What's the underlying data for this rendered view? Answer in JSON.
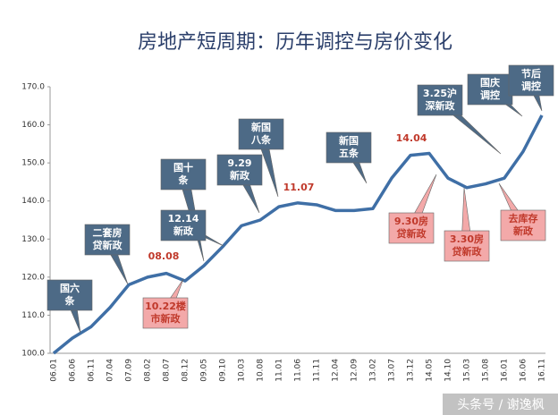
{
  "chart_data": {
    "type": "line",
    "title": "房地产短周期：历年调控与房价变化",
    "categories": [
      "06.01",
      "06.06",
      "06.11",
      "07.04",
      "07.09",
      "08.02",
      "08.07",
      "08.12",
      "09.05",
      "09.10",
      "10.03",
      "10.08",
      "11.01",
      "11.06",
      "11.11",
      "12.04",
      "12.09",
      "13.02",
      "13.07",
      "13.12",
      "14.05",
      "14.10",
      "15.03",
      "15.08",
      "16.01",
      "16.06",
      "16.11"
    ],
    "values": [
      100,
      104,
      107,
      112,
      118,
      120,
      121,
      119,
      123,
      128,
      133.5,
      135,
      138.5,
      139.5,
      139,
      137.5,
      137.5,
      138,
      146,
      152,
      152.5,
      146,
      143.5,
      144.5,
      146,
      153,
      162.5
    ],
    "color": "#3f6fa6",
    "ylim": [
      100,
      170
    ],
    "yticks": [
      {
        "value": 100,
        "label": "100.0"
      },
      {
        "value": 110,
        "label": "110.0"
      },
      {
        "value": 120,
        "label": "120.0"
      },
      {
        "value": 130,
        "label": "130.0"
      },
      {
        "value": 140,
        "label": "140.0"
      },
      {
        "value": 150,
        "label": "150.0"
      },
      {
        "value": 160,
        "label": "160.0"
      },
      {
        "value": 170,
        "label": "170.0"
      }
    ],
    "grid": false,
    "annotations": [
      {
        "lines": [
          "国六",
          "条"
        ],
        "color": "#ffffff",
        "box": "#4d6a86"
      },
      {
        "lines": [
          "二套房",
          "贷新政"
        ],
        "color": "#ffffff",
        "box": "#4d6a86"
      },
      {
        "lines": [
          "08.08"
        ],
        "color": "#c0392b"
      },
      {
        "lines": [
          "10.22楼",
          "市新政"
        ],
        "color": "#c0392b",
        "box": "#f3a9a9"
      },
      {
        "lines": [
          "国十",
          "条"
        ],
        "color": "#ffffff",
        "box": "#4d6a86"
      },
      {
        "lines": [
          "12.14",
          "新政"
        ],
        "color": "#ffffff",
        "box": "#4d6a86"
      },
      {
        "lines": [
          "9.29",
          "新政"
        ],
        "color": "#ffffff",
        "box": "#4d6a86"
      },
      {
        "lines": [
          "新国",
          "八条"
        ],
        "color": "#ffffff",
        "box": "#4d6a86"
      },
      {
        "lines": [
          "11.07"
        ],
        "color": "#c0392b"
      },
      {
        "lines": [
          "新国",
          "五条"
        ],
        "color": "#ffffff",
        "box": "#4d6a86"
      },
      {
        "lines": [
          "14.04"
        ],
        "color": "#c0392b"
      },
      {
        "lines": [
          "9.30房",
          "贷新政"
        ],
        "color": "#c0392b",
        "box": "#f3a9a9"
      },
      {
        "lines": [
          "3.30房",
          "贷新政"
        ],
        "color": "#c0392b",
        "box": "#f3a9a9"
      },
      {
        "lines": [
          "3.25沪",
          "深新政"
        ],
        "color": "#ffffff",
        "box": "#4d6a86"
      },
      {
        "lines": [
          "国庆",
          "调控"
        ],
        "color": "#ffffff",
        "box": "#4d6a86"
      },
      {
        "lines": [
          "去库存",
          "新政"
        ],
        "color": "#c0392b",
        "box": "#f3a9a9"
      },
      {
        "lines": [
          "节后",
          "调控"
        ],
        "color": "#ffffff",
        "box": "#4d6a86"
      }
    ]
  },
  "watermark": "头条号 / 谢逸枫"
}
